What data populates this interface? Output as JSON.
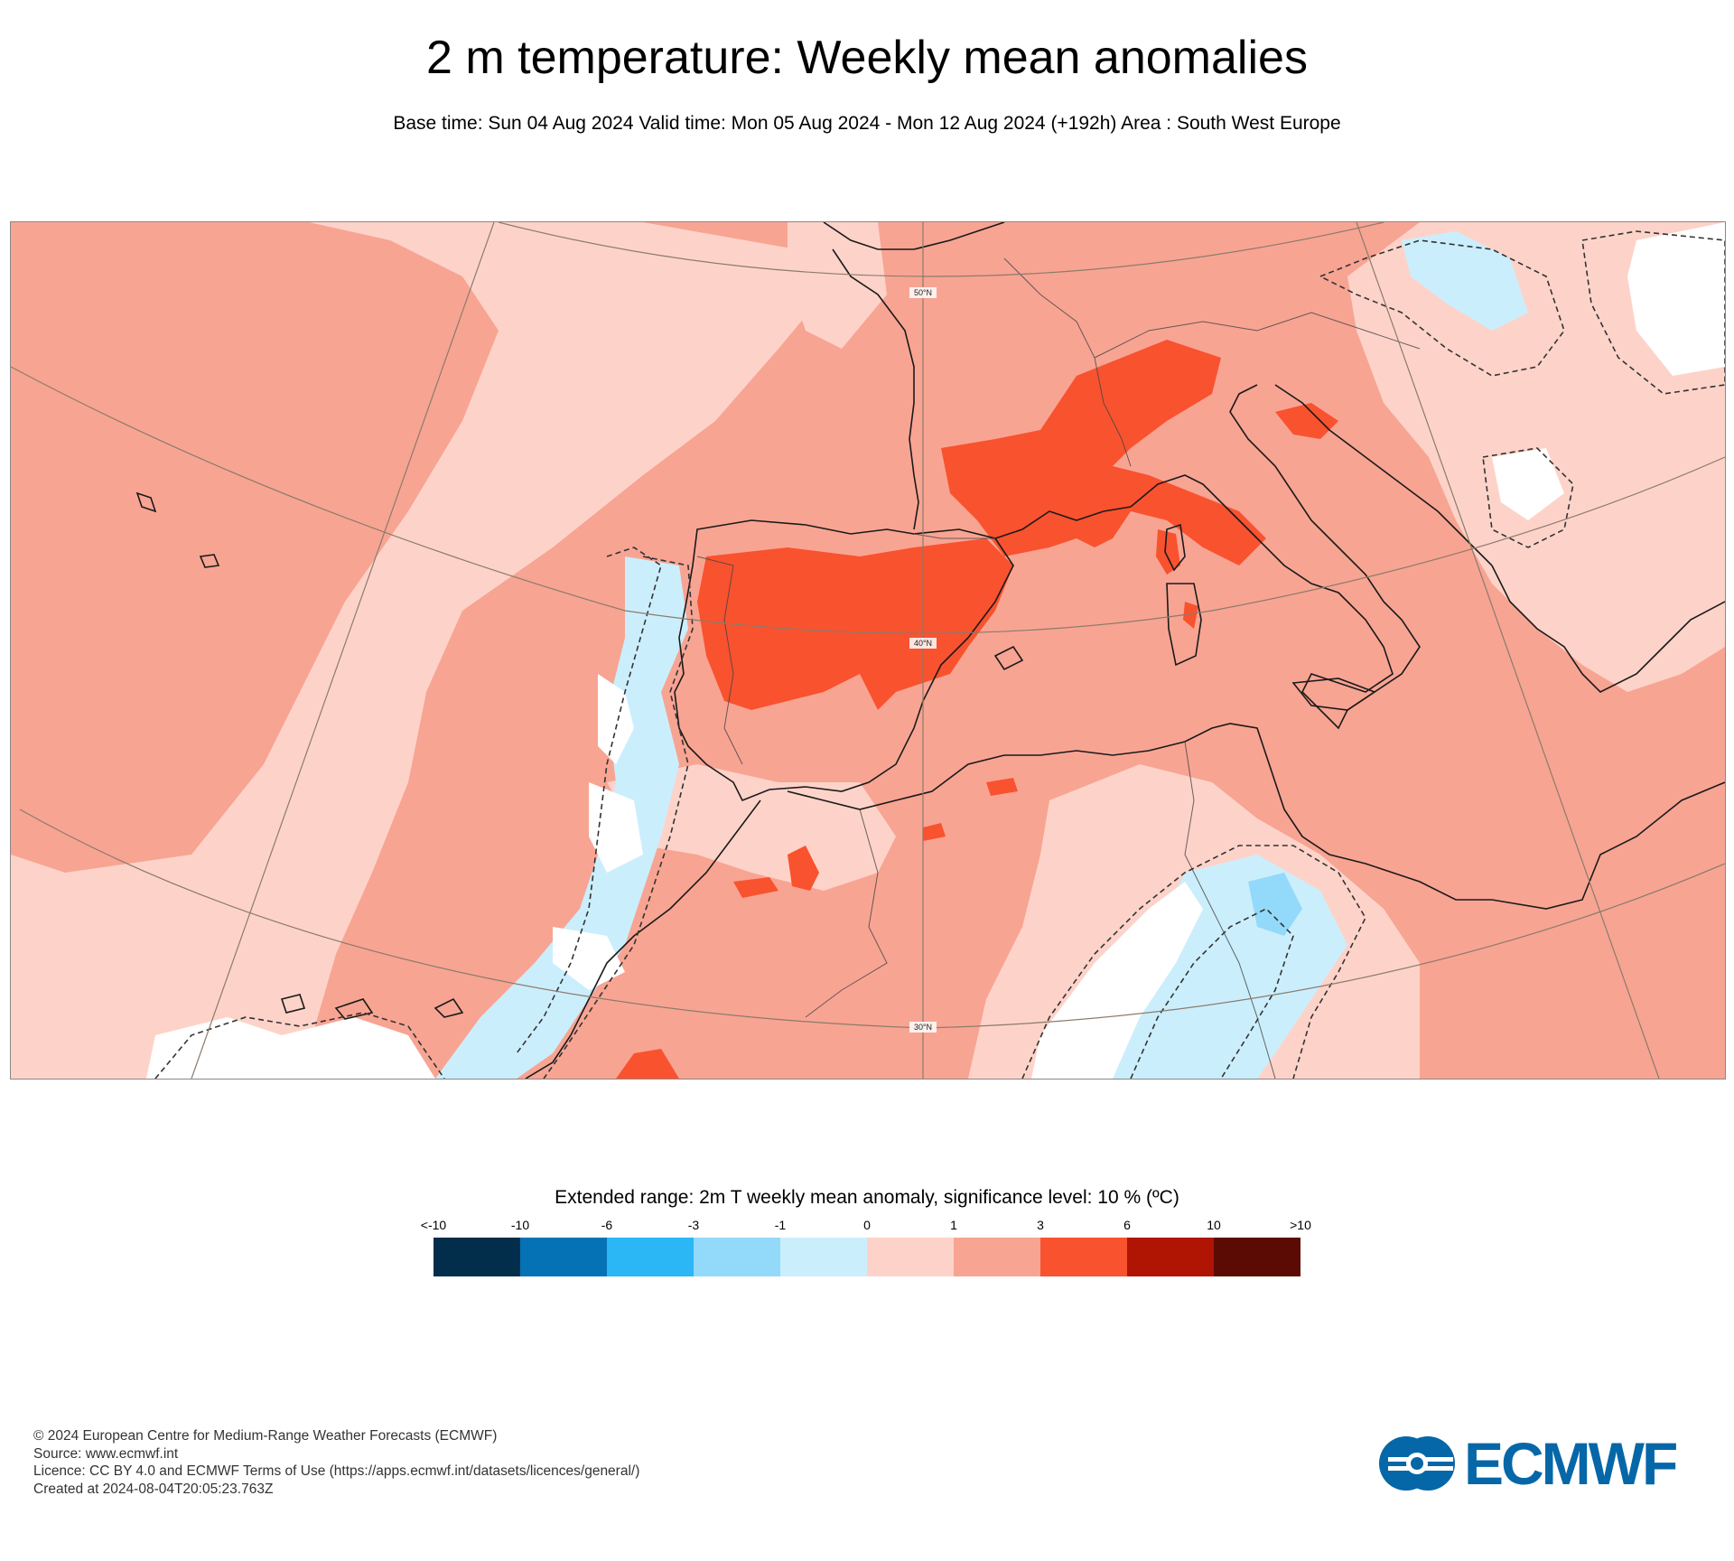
{
  "header": {
    "title": "2 m temperature: Weekly mean anomalies",
    "subtitle": "Base time: Sun 04 Aug 2024 Valid time: Mon 05 Aug 2024 - Mon 12 Aug 2024 (+192h) Area : South West Europe"
  },
  "map": {
    "lat_labels": [
      "50°N",
      "40°N",
      "30°N"
    ],
    "colors": {
      "anomaly_0_to_1": "#fdd3c9",
      "anomaly_1_to_3": "#f8a493",
      "anomaly_3_to_6": "#f9522f",
      "anomaly_m1_to_0": "#cbeefd",
      "anomaly_m3_to_m1": "#93d9fa",
      "not_significant": "#ffffff",
      "coastline": "#1a1a1a",
      "graticule": "#8b7b6a"
    }
  },
  "legend": {
    "title": "Extended range: 2m T weekly mean anomaly, significance level: 10 % (ºC)",
    "ticks": [
      "<-10",
      "-10",
      "-6",
      "-3",
      "-1",
      "0",
      "1",
      "3",
      "6",
      "10",
      ">10"
    ],
    "colors": [
      "#022e4b",
      "#0672b6",
      "#2bb6f6",
      "#93d9fa",
      "#cbeefd",
      "#fdd3c9",
      "#f8a493",
      "#f9522f",
      "#b01503",
      "#5b0b03"
    ]
  },
  "footer": {
    "copyright": "© 2024 European Centre for Medium-Range Weather Forecasts (ECMWF)",
    "source": "Source: www.ecmwf.int",
    "licence": "Licence: CC BY 4.0 and ECMWF Terms of Use (https://apps.ecmwf.int/datasets/licences/general/)",
    "created": "Created at 2024-08-04T20:05:23.763Z"
  },
  "logo": {
    "text": "ECMWF",
    "color": "#0567a8"
  }
}
